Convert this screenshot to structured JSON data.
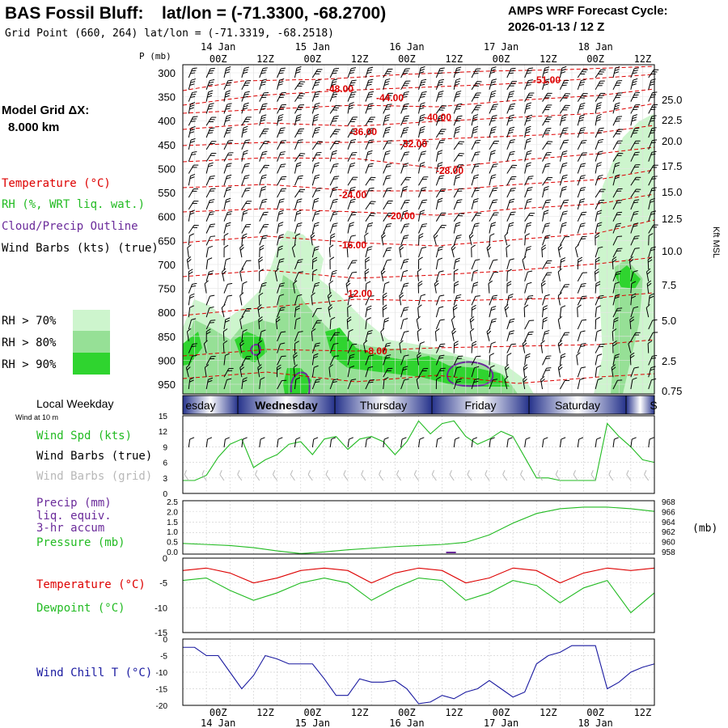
{
  "header": {
    "station": "BAS Fossil Bluff:",
    "latlon": "lat/lon = (-71.3300, -68.2700)",
    "grid_point": "Grid Point (660, 264) lat/lon = (-71.3319, -68.2518)",
    "forecast_label": "AMPS WRF Forecast Cycle:",
    "forecast_cycle": "2026-01-13 / 12  Z",
    "model_grid": "Model Grid ΔX:",
    "model_grid_value": "8.000 km"
  },
  "colors": {
    "temperature": "#dd0000",
    "rh": "#22bb22",
    "cloud": "#6a2a9a",
    "wind_chill": "#1a1aa0",
    "rh70": "#cdf5cd",
    "rh80": "#96e096",
    "rh90": "#2fd42f"
  },
  "time_axis": {
    "top_ticks": [
      "00Z",
      "12Z",
      "00Z",
      "12Z",
      "00Z",
      "12Z",
      "00Z",
      "12Z",
      "00Z",
      "12Z"
    ],
    "dates": [
      "14 Jan",
      "15 Jan",
      "16 Jan",
      "17 Jan",
      "18 Jan"
    ],
    "weekdays": [
      "esday",
      "Wednesday",
      "Thursday",
      "Friday",
      "Saturday",
      "S"
    ],
    "weekday_label": "Local Weekday"
  },
  "panels": {
    "cross_section": {
      "p_label": "P (mb)",
      "pressure_levels": [
        "300",
        "350",
        "400",
        "450",
        "500",
        "550",
        "600",
        "650",
        "700",
        "750",
        "800",
        "850",
        "900",
        "950"
      ],
      "kft_labels": [
        "25.0",
        "22.5",
        "20.0",
        "17.5",
        "15.0",
        "12.5",
        "10.0",
        "7.5",
        "5.0",
        "2.5",
        "0.75"
      ],
      "kft_axis_label": "Kft MSL",
      "legend": {
        "temperature": "Temperature (°C)",
        "rh": "RH (%, WRT liq. wat.)",
        "cloud": "Cloud/Precip Outline",
        "wind": "Wind Barbs (kts) (true)",
        "rh70": "RH > 70%",
        "rh80": "RH > 80%",
        "rh90": "RH > 90%"
      },
      "isotherm_labels": [
        "-48.00",
        "-44.00",
        "-40.00",
        "-36.00",
        "-32.00",
        "-28.00",
        "-24.00",
        "-20.00",
        "-16.00",
        "-12.00",
        "-8.00",
        "-51.00"
      ]
    },
    "wind": {
      "top_label": "Wind at 10 m",
      "speed_label": "Wind Spd (kts)",
      "barbs_true_label": "Wind Barbs (true)",
      "barbs_grid_label": "Wind Barbs (grid)",
      "yticks": [
        "15",
        "12",
        "9",
        "6",
        "3",
        "0"
      ]
    },
    "precip": {
      "precip_label": "Precip (mm)",
      "liq_label": "liq. equiv.",
      "accum_label": "3-hr accum",
      "pressure_label": "Pressure (mb)",
      "left_ticks": [
        "2.5",
        "2.0",
        "1.5",
        "1.0",
        "0.5",
        "0.0"
      ],
      "right_ticks": [
        "968",
        "966",
        "964",
        "962",
        "960",
        "958"
      ],
      "units": "(mb)"
    },
    "temp": {
      "temp_label": "Temperature (°C)",
      "dew_label": "Dewpoint (°C)",
      "yticks": [
        "0",
        "-5",
        "-10",
        "-15"
      ]
    },
    "windchill": {
      "label": "Wind Chill T (°C)",
      "yticks": [
        "0",
        "-5",
        "-10",
        "-15",
        "-20"
      ]
    }
  },
  "chart_data": [
    {
      "type": "line",
      "title": "Wind Spd (kts) at 10 m",
      "x_hours": [
        0,
        3,
        6,
        9,
        12,
        15,
        18,
        21,
        24,
        27,
        30,
        33,
        36,
        39,
        42,
        45,
        48,
        51,
        54,
        57,
        60,
        63,
        66,
        69,
        72,
        75,
        78,
        81,
        84,
        87,
        90,
        93,
        96,
        99,
        102,
        105,
        108,
        111,
        114,
        117,
        120
      ],
      "series": [
        {
          "name": "Wind Spd (kts)",
          "values": [
            2.5,
            2.5,
            3.5,
            7,
            9.5,
            10.5,
            5,
            6.5,
            7.5,
            9.5,
            10,
            7.5,
            10.5,
            11,
            8.5,
            10.5,
            11,
            10,
            7.5,
            10,
            14,
            11.5,
            13.5,
            14,
            11,
            9.5,
            10.5,
            12,
            11,
            7,
            3,
            3,
            2.5,
            2.5,
            2.5,
            2.5,
            13.5,
            11,
            9,
            6.5,
            6
          ]
        }
      ],
      "ylim": [
        0,
        15
      ]
    },
    {
      "type": "line",
      "title": "Pressure (mb)",
      "x_hours": [
        0,
        6,
        12,
        18,
        24,
        30,
        36,
        42,
        48,
        54,
        60,
        66,
        72,
        78,
        84,
        90,
        96,
        102,
        108,
        114,
        120
      ],
      "series": [
        {
          "name": "Pressure (mb)",
          "values": [
            960,
            959.8,
            959.6,
            959.2,
            958.6,
            958.1,
            958.4,
            958.8,
            959.1,
            959.4,
            959.6,
            959.8,
            960.2,
            961.6,
            963.8,
            965.6,
            966.5,
            966.8,
            966.8,
            966.5,
            966
          ]
        }
      ],
      "ylim": [
        958,
        968
      ]
    },
    {
      "type": "line",
      "title": "Temperature / Dewpoint (°C)",
      "x_hours": [
        0,
        6,
        12,
        18,
        24,
        30,
        36,
        42,
        48,
        54,
        60,
        66,
        72,
        78,
        84,
        90,
        96,
        102,
        108,
        114,
        120
      ],
      "series": [
        {
          "name": "Temperature (°C)",
          "values": [
            -2.5,
            -2,
            -3,
            -5,
            -4,
            -2.5,
            -2,
            -2.5,
            -5,
            -3,
            -2,
            -2.5,
            -5,
            -4,
            -2,
            -2.5,
            -5,
            -3,
            -2,
            -2.5,
            -2
          ]
        },
        {
          "name": "Dewpoint (°C)",
          "values": [
            -4.5,
            -4,
            -6.5,
            -8.5,
            -7,
            -5,
            -4,
            -5,
            -8.5,
            -6,
            -4,
            -4.5,
            -8.5,
            -7,
            -4.5,
            -5.5,
            -9,
            -6,
            -4.5,
            -11,
            -7
          ]
        }
      ],
      "ylim": [
        -15,
        0
      ]
    },
    {
      "type": "line",
      "title": "Wind Chill T (°C)",
      "x_hours": [
        0,
        3,
        6,
        9,
        12,
        15,
        18,
        21,
        24,
        27,
        30,
        33,
        36,
        39,
        42,
        45,
        48,
        51,
        54,
        57,
        60,
        63,
        66,
        69,
        72,
        75,
        78,
        81,
        84,
        87,
        90,
        93,
        96,
        99,
        102,
        105,
        108,
        111,
        114,
        117,
        120
      ],
      "series": [
        {
          "name": "Wind Chill T (°C)",
          "values": [
            -2.5,
            -2.5,
            -5,
            -5,
            -10,
            -15,
            -11,
            -5,
            -6,
            -7.5,
            -7.5,
            -7.5,
            -12,
            -17,
            -17,
            -12,
            -13,
            -13,
            -12.5,
            -15,
            -19.5,
            -19,
            -17,
            -18,
            -16,
            -15,
            -12.5,
            -15,
            -17.5,
            -16,
            -7.5,
            -5,
            -4,
            -2,
            -2,
            -2,
            -15,
            -13,
            -10,
            -8.5,
            -7.5
          ]
        }
      ],
      "ylim": [
        -20,
        0
      ]
    }
  ]
}
